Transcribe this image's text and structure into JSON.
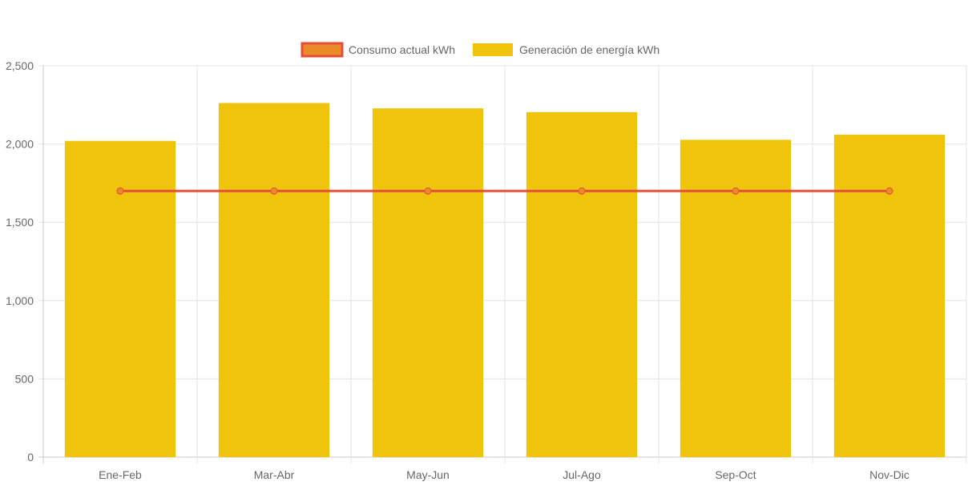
{
  "chart_data": {
    "type": "bar",
    "categories": [
      "Ene-Feb",
      "Mar-Abr",
      "May-Jun",
      "Jul-Ago",
      "Sep-Oct",
      "Nov-Dic"
    ],
    "series": [
      {
        "name": "Consumo actual kWh",
        "type": "line",
        "values": [
          1700,
          1700,
          1700,
          1700,
          1700,
          1700
        ]
      },
      {
        "name": "Generación de energía kWh",
        "type": "bar",
        "values": [
          2020,
          2262,
          2228,
          2204,
          2027,
          2060
        ]
      }
    ],
    "ylim": [
      0,
      2500
    ],
    "yticks": [
      "0",
      "500",
      "1,000",
      "1,500",
      "2,000",
      "2,500"
    ],
    "grid": true,
    "legend_position": "top-center"
  },
  "colors": {
    "bar_fill": "#f0c40c",
    "line_stroke": "#e44d3a",
    "point_fill": "#e98b26",
    "grid": "#e3e3e3",
    "text": "#666666"
  }
}
